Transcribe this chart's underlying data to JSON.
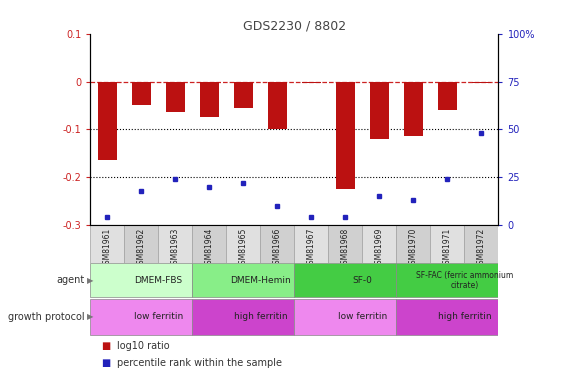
{
  "title": "GDS2230 / 8802",
  "samples": [
    "GSM81961",
    "GSM81962",
    "GSM81963",
    "GSM81964",
    "GSM81965",
    "GSM81966",
    "GSM81967",
    "GSM81968",
    "GSM81969",
    "GSM81970",
    "GSM81971",
    "GSM81972"
  ],
  "log10_ratio": [
    -0.165,
    -0.048,
    -0.063,
    -0.075,
    -0.055,
    -0.1,
    -0.002,
    -0.225,
    -0.12,
    -0.114,
    -0.06,
    -0.003
  ],
  "percentile_rank": [
    4,
    18,
    24,
    20,
    22,
    10,
    4,
    4,
    15,
    13,
    24,
    48
  ],
  "ylim_left": [
    -0.3,
    0.1
  ],
  "ylim_right": [
    0,
    100
  ],
  "bar_color": "#bb1111",
  "dot_color": "#2222bb",
  "dashed_line_color": "#cc2222",
  "dotted_line_color": "#000000",
  "bg_color": "#ffffff",
  "agent_groups": [
    {
      "label": "DMEM-FBS",
      "start": 0,
      "end": 3,
      "color": "#ccffcc"
    },
    {
      "label": "DMEM-Hemin",
      "start": 3,
      "end": 6,
      "color": "#88ee88"
    },
    {
      "label": "SF-0",
      "start": 6,
      "end": 9,
      "color": "#44cc44"
    },
    {
      "label": "SF-FAC (ferric ammonium\ncitrate)",
      "start": 9,
      "end": 12,
      "color": "#44cc44"
    }
  ],
  "growth_groups": [
    {
      "label": "low ferritin",
      "start": 0,
      "end": 3,
      "color": "#ee88ee"
    },
    {
      "label": "high ferritin",
      "start": 3,
      "end": 6,
      "color": "#cc44cc"
    },
    {
      "label": "low ferritin",
      "start": 6,
      "end": 9,
      "color": "#ee88ee"
    },
    {
      "label": "high ferritin",
      "start": 9,
      "end": 12,
      "color": "#cc44cc"
    }
  ],
  "agent_label": "agent",
  "growth_label": "growth protocol",
  "legend_items": [
    {
      "label": "log10 ratio",
      "color": "#bb1111"
    },
    {
      "label": "percentile rank within the sample",
      "color": "#2222bb"
    }
  ]
}
